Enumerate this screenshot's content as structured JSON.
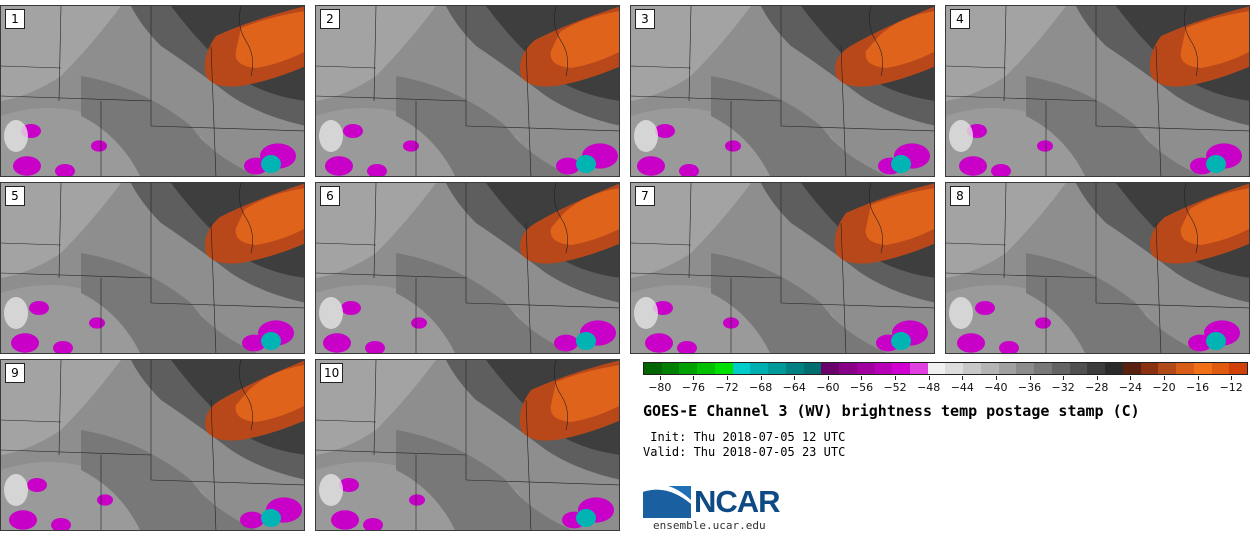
{
  "panels": [
    {
      "label": "1"
    },
    {
      "label": "2"
    },
    {
      "label": "3"
    },
    {
      "label": "4"
    },
    {
      "label": "5"
    },
    {
      "label": "6"
    },
    {
      "label": "7"
    },
    {
      "label": "8"
    },
    {
      "label": "9"
    },
    {
      "label": "10"
    }
  ],
  "colorbar": {
    "ticks": [
      "−80",
      "−76",
      "−72",
      "−68",
      "−64",
      "−60",
      "−56",
      "−52",
      "−48",
      "−44",
      "−40",
      "−36",
      "−32",
      "−28",
      "−24",
      "−20",
      "−16",
      "−12"
    ],
    "range": [
      -82,
      -10
    ],
    "colors": [
      "#006400",
      "#007f00",
      "#00a000",
      "#00c000",
      "#00e000",
      "#00cccc",
      "#00b0b0",
      "#009999",
      "#008080",
      "#006e6e",
      "#6a006a",
      "#880088",
      "#a000a0",
      "#b800b8",
      "#d000d0",
      "#e040e0",
      "#f0f0f0",
      "#dddddd",
      "#c8c8c8",
      "#b4b4b4",
      "#a0a0a0",
      "#8c8c8c",
      "#787878",
      "#646464",
      "#505050",
      "#3c3c3c",
      "#2a2a2a",
      "#5a2010",
      "#8a3210",
      "#b04a18",
      "#d85e18",
      "#f07018",
      "#e05a10",
      "#d04008"
    ]
  },
  "title": "GOES-E Channel 3 (WV) brightness temp postage stamp (C)",
  "init": " Init: Thu 2018-07-05 12 UTC",
  "valid": "Valid: Thu 2018-07-05 23 UTC",
  "logo": {
    "name": "NCAR",
    "url": "ensemble.ucar.edu"
  }
}
